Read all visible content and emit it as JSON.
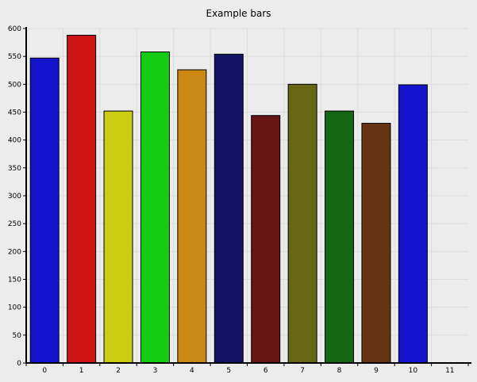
{
  "chart_data": {
    "type": "bar",
    "title": "Example bars",
    "xlabel": "",
    "ylabel": "",
    "categories": [
      "0",
      "1",
      "2",
      "3",
      "4",
      "5",
      "6",
      "7",
      "8",
      "9",
      "10",
      "11"
    ],
    "values": [
      547,
      588,
      452,
      558,
      526,
      554,
      444,
      500,
      452,
      430,
      499,
      null
    ],
    "colors": [
      "#1414cc",
      "#cc1414",
      "#cccc14",
      "#14cc14",
      "#cc8814",
      "#141466",
      "#661414",
      "#666614",
      "#146614",
      "#663314",
      "#1414cc",
      null
    ],
    "ylim": [
      0,
      600
    ],
    "yticks": [
      "0",
      "50",
      "100",
      "150",
      "200",
      "250",
      "300",
      "350",
      "400",
      "450",
      "500",
      "550",
      "600"
    ],
    "grid": true,
    "legend": "none"
  }
}
